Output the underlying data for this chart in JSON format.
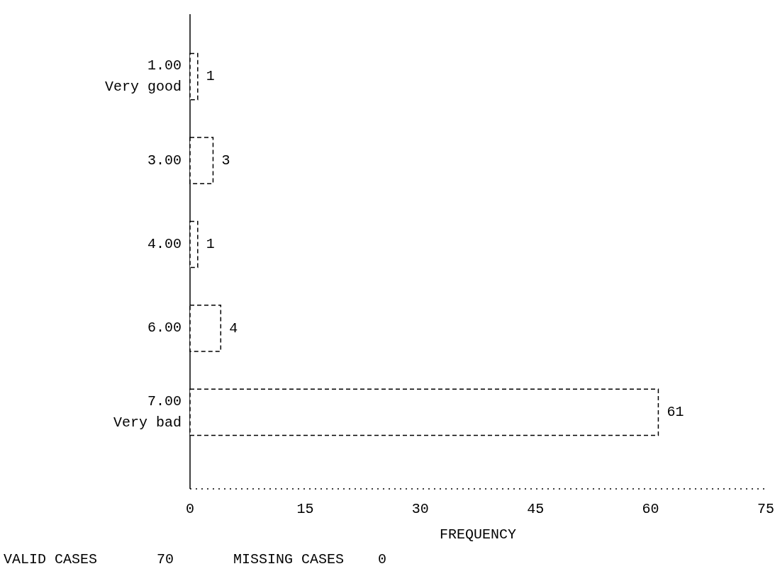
{
  "chart_data": {
    "type": "bar",
    "orientation": "horizontal",
    "categories": [
      "1.00\nVery good",
      "3.00",
      "4.00",
      "6.00",
      "7.00\nVery bad"
    ],
    "values": [
      1,
      3,
      1,
      4,
      61
    ],
    "color": "#ffffff",
    "data_labels": true,
    "xlim": [
      0,
      75
    ],
    "xticks": [
      0,
      15,
      30,
      45,
      60,
      75
    ],
    "xlabel": "FREQUENCY",
    "grid": false,
    "annotations": [
      "VALID CASES       70       MISSING CASES    0"
    ]
  }
}
